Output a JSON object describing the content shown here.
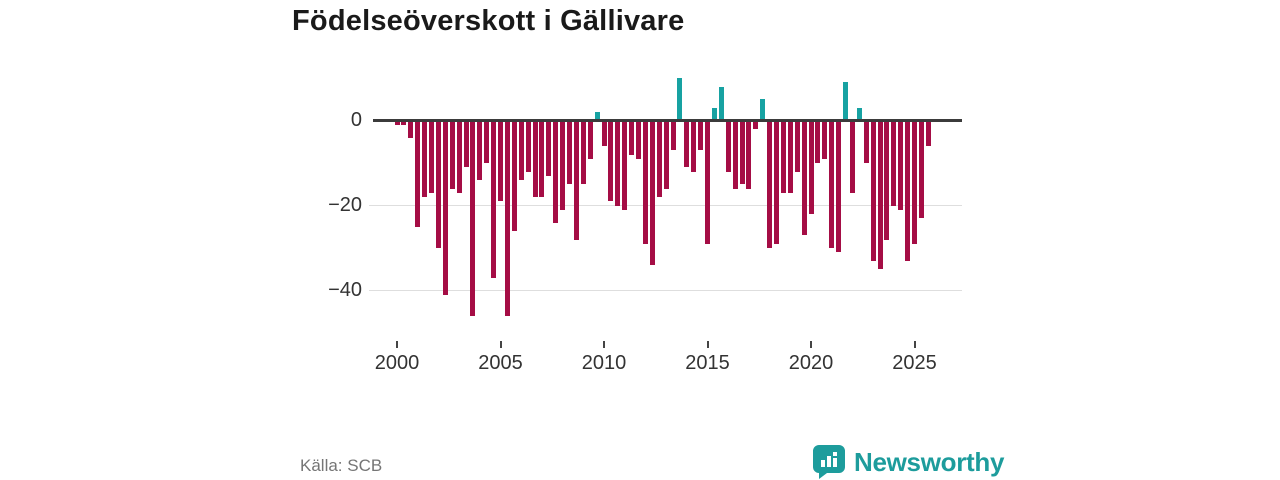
{
  "title": "Födelseöverskott i Gällivare",
  "source": "Källa: SCB",
  "brand": {
    "name": "Newsworthy",
    "color": "#1d9c9c"
  },
  "colors": {
    "negative": "#a50d45",
    "positive": "#17a2a2",
    "axis": "#3b3b3b",
    "grid": "#dedede",
    "tick_text": "#333333",
    "source_text": "#757575",
    "title_text": "#1a1a1a"
  },
  "chart_data": {
    "type": "bar",
    "title": "Födelseöverskott i Gällivare",
    "start_year": 2000,
    "bars_per_year": 3,
    "values": [
      -1,
      -1,
      -4,
      -25,
      -18,
      -17,
      -30,
      -41,
      -16,
      -17,
      -11,
      -46,
      -14,
      -10,
      -37,
      -19,
      -46,
      -26,
      -14,
      -12,
      -18,
      -18,
      -13,
      -24,
      -21,
      -15,
      -28,
      -15,
      -9,
      2,
      -6,
      -19,
      -20,
      -21,
      -8,
      -9,
      -29,
      -34,
      -18,
      -16,
      -7,
      10,
      -11,
      -12,
      -7,
      -29,
      3,
      8,
      -12,
      -16,
      -15,
      -16,
      -2,
      5,
      -30,
      -29,
      -17,
      -17,
      -12,
      -27,
      -22,
      -10,
      -9,
      -30,
      -31,
      9,
      -17,
      3,
      -10,
      -33,
      -35,
      -28,
      -20,
      -21,
      -33,
      -29,
      -23,
      -6
    ],
    "positive_color": "#17a2a2",
    "negative_color": "#a50d45",
    "x_tick_labels": [
      "2000",
      "2005",
      "2010",
      "2015",
      "2020",
      "2025"
    ],
    "x_tick_indices": [
      0,
      15,
      30,
      45,
      60,
      75
    ],
    "y_tick_labels": [
      "0",
      "−20",
      "−40"
    ],
    "y_tick_values": [
      0,
      -20,
      -40
    ],
    "ylim": [
      -48,
      13
    ],
    "grid": "horizontal",
    "legend": "none"
  }
}
